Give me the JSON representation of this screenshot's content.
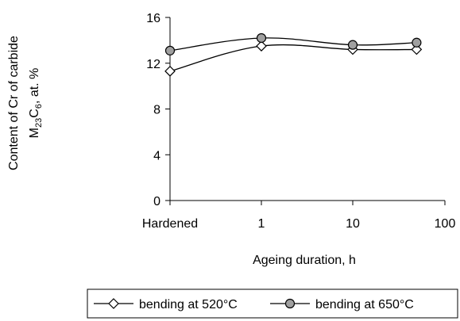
{
  "chart_data": {
    "type": "line",
    "title": "",
    "xlabel": "Ageing duration, h",
    "ylabel_line1": "Content of Cr of carbide",
    "ylabel_line2": {
      "main": "M",
      "sub1": "23",
      "mid": "C",
      "sub2": "6",
      "tail": ", at. %"
    },
    "x_scale": "log",
    "x_tick_labels": [
      "Hardened",
      "1",
      "10",
      "100"
    ],
    "y_ticks": [
      0,
      4,
      8,
      12,
      16
    ],
    "ylim": [
      0,
      16
    ],
    "grid": false,
    "legend_position": "bottom",
    "series": [
      {
        "name": "bending at 520°C",
        "marker": "diamond",
        "color": "#000000",
        "x": [
          "Hardened",
          1,
          10,
          50
        ],
        "y": [
          11.3,
          13.5,
          13.2,
          13.2
        ]
      },
      {
        "name": "bending at 650°C",
        "marker": "circle",
        "color": "#000000",
        "marker_fill": "#a0a0a0",
        "x": [
          "Hardened",
          1,
          10,
          50
        ],
        "y": [
          13.1,
          14.2,
          13.6,
          13.8
        ]
      }
    ]
  }
}
